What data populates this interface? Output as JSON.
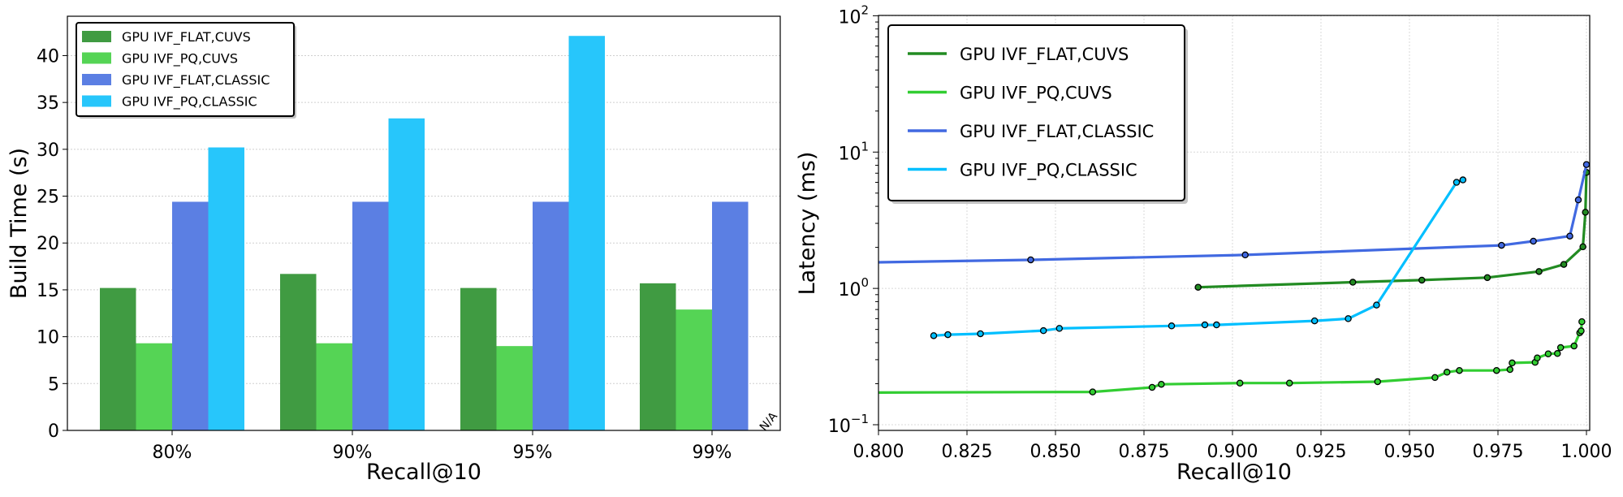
{
  "chart_data": [
    {
      "type": "bar",
      "xlabel": "Recall@10",
      "ylabel": "Build Time (s)",
      "categories": [
        "80%",
        "90%",
        "95%",
        "99%"
      ],
      "ylim": [
        0,
        44.2
      ],
      "yticks": [
        0,
        5,
        10,
        15,
        20,
        25,
        30,
        35,
        40
      ],
      "grid": true,
      "legend_position": "top-left",
      "annotation": "N/A",
      "series": [
        {
          "name": "GPU IVF_FLAT,CUVS",
          "color": "#409b42",
          "values": [
            15.2,
            16.7,
            15.2,
            15.7
          ]
        },
        {
          "name": "GPU IVF_PQ,CUVS",
          "color": "#55d455",
          "values": [
            9.3,
            9.3,
            9.0,
            12.9
          ]
        },
        {
          "name": "GPU IVF_FLAT,CLASSIC",
          "color": "#5b7fe3",
          "values": [
            24.4,
            24.4,
            24.4,
            24.4
          ]
        },
        {
          "name": "GPU IVF_PQ,CLASSIC",
          "color": "#27c6fb",
          "values": [
            30.2,
            33.3,
            42.1,
            null
          ]
        }
      ]
    },
    {
      "type": "line",
      "xlabel": "Recall@10",
      "ylabel": "Latency (ms)",
      "xlim": [
        0.8,
        1.002
      ],
      "ylim": [
        0.085,
        100
      ],
      "yscale": "log",
      "xticks": [
        "0.800",
        "0.825",
        "0.850",
        "0.875",
        "0.900",
        "0.925",
        "0.950",
        "0.975",
        "1.000"
      ],
      "yticks": [
        {
          "base": "10",
          "exp": "−1",
          "value": 0.1
        },
        {
          "base": "10",
          "exp": "0",
          "value": 1
        },
        {
          "base": "10",
          "exp": "1",
          "value": 10
        },
        {
          "base": "10",
          "exp": "2",
          "value": 100
        }
      ],
      "grid": true,
      "legend_position": "top-left",
      "series": [
        {
          "name": "GPU IVF_FLAT,CUVS",
          "color": "#228b22",
          "x": [
            0.8903,
            0.934,
            0.9535,
            0.972,
            0.9866,
            0.9936,
            0.999,
            0.9997,
            1.0
          ],
          "y": [
            1.02,
            1.11,
            1.15,
            1.2,
            1.33,
            1.5,
            2.02,
            3.62,
            7.1
          ]
        },
        {
          "name": "GPU IVF_PQ,CUVS",
          "color": "#32cd32",
          "x": [
            0.79,
            0.8605,
            0.8773,
            0.8799,
            0.9021,
            0.9161,
            0.941,
            0.9572,
            0.9606,
            0.9641,
            0.9746,
            0.9784,
            0.979,
            0.9855,
            0.9861,
            0.9892,
            0.9918,
            0.9927,
            0.9965,
            0.9981,
            0.9985,
            0.9987
          ],
          "y": [
            0.172,
            0.174,
            0.188,
            0.198,
            0.202,
            0.202,
            0.207,
            0.222,
            0.243,
            0.25,
            0.25,
            0.254,
            0.284,
            0.287,
            0.309,
            0.331,
            0.333,
            0.368,
            0.378,
            0.473,
            0.488,
            0.57
          ]
        },
        {
          "name": "GPU IVF_FLAT,CLASSIC",
          "color": "#4169e1",
          "x": [
            0.79,
            0.843,
            0.9036,
            0.976,
            0.985,
            0.9953,
            0.9977,
            1.0
          ],
          "y": [
            1.54,
            1.62,
            1.76,
            2.07,
            2.22,
            2.42,
            4.46,
            8.1
          ]
        },
        {
          "name": "GPU IVF_PQ,CLASSIC",
          "color": "#00bfff",
          "x": [
            0.8156,
            0.8196,
            0.8288,
            0.8466,
            0.8511,
            0.8828,
            0.8922,
            0.8955,
            0.9232,
            0.9327,
            0.9407,
            0.9633,
            0.9651
          ],
          "y": [
            0.45,
            0.458,
            0.465,
            0.49,
            0.509,
            0.531,
            0.54,
            0.54,
            0.578,
            0.6,
            0.755,
            6.0,
            6.25
          ]
        }
      ]
    }
  ]
}
